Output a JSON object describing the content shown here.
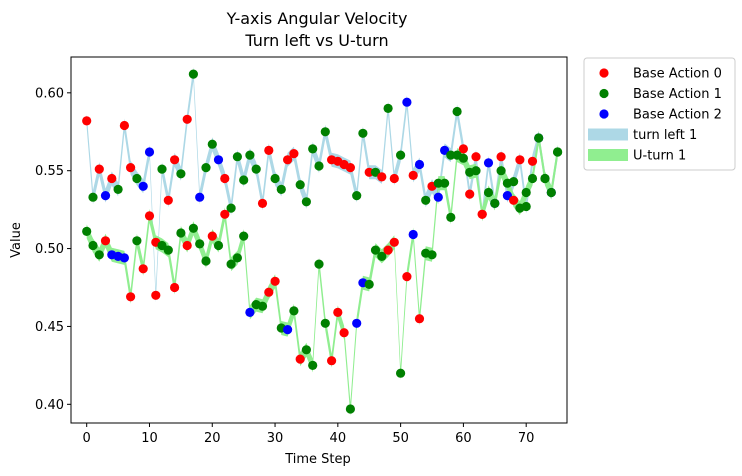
{
  "chart_data": {
    "type": "scatter",
    "title": "Y-axis Angular Velocity",
    "subtitle": "Turn left vs U-turn",
    "xlabel": "Time Step",
    "ylabel": "Value",
    "xlim": [
      -2.5,
      76.5
    ],
    "ylim": [
      0.388,
      0.623
    ],
    "xticks": [
      0,
      10,
      20,
      30,
      40,
      50,
      60,
      70
    ],
    "yticks": [
      0.4,
      0.45,
      0.5,
      0.55,
      0.6
    ],
    "xtick_labels": [
      "0",
      "10",
      "20",
      "30",
      "40",
      "50",
      "60",
      "70"
    ],
    "ytick_labels": [
      "0.40",
      "0.45",
      "0.50",
      "0.55",
      "0.60"
    ],
    "grid": false,
    "legend_position": "outside-right",
    "legend": [
      {
        "label": "Base Action 0",
        "kind": "marker",
        "color": "#ff0000"
      },
      {
        "label": "Base Action 1",
        "kind": "marker",
        "color": "#008000"
      },
      {
        "label": "Base Action 2",
        "kind": "marker",
        "color": "#0000ff"
      },
      {
        "label": "turn left 1",
        "kind": "band",
        "color": "#add8e6"
      },
      {
        "label": "U-turn 1",
        "kind": "band",
        "color": "#90ee90"
      }
    ],
    "series": [
      {
        "name": "turn left 1",
        "color": "#add8e6",
        "values": [
          0.582,
          0.533,
          0.551,
          0.534,
          0.545,
          0.538,
          0.579,
          0.552,
          0.545,
          0.54,
          0.562,
          0.47,
          0.551,
          0.531,
          0.557,
          0.548,
          0.583,
          0.612,
          0.533,
          0.552,
          0.567,
          0.557,
          0.545,
          0.526,
          0.559,
          0.544,
          0.56,
          0.551,
          0.529,
          0.563,
          0.545,
          0.538,
          0.557,
          0.561,
          0.541,
          0.53,
          0.564,
          0.553,
          0.575,
          0.557,
          0.556,
          0.554,
          0.552,
          0.534,
          0.574,
          0.549,
          0.549,
          0.546,
          0.59,
          0.545,
          0.56,
          0.594,
          0.547,
          0.554,
          0.531,
          0.54,
          0.533,
          0.563,
          0.56,
          0.588,
          0.564,
          0.535,
          0.559,
          0.522,
          0.555,
          0.529,
          0.559,
          0.534,
          0.543,
          0.557,
          0.527,
          0.556,
          0.571,
          0.545,
          0.536,
          0.562
        ],
        "action": [
          0,
          1,
          0,
          2,
          0,
          1,
          0,
          0,
          1,
          2,
          2,
          0,
          1,
          0,
          0,
          1,
          0,
          1,
          2,
          1,
          1,
          2,
          0,
          1,
          1,
          1,
          1,
          1,
          0,
          0,
          1,
          1,
          0,
          0,
          1,
          1,
          1,
          1,
          1,
          0,
          0,
          0,
          0,
          1,
          1,
          0,
          1,
          0,
          1,
          0,
          1,
          2,
          0,
          2,
          1,
          0,
          2,
          2,
          1,
          1,
          0,
          0,
          0,
          0,
          2,
          2,
          0,
          2,
          1,
          0,
          1,
          0,
          2,
          1,
          2,
          1
        ]
      },
      {
        "name": "U-turn 1",
        "color": "#90ee90",
        "values": [
          0.511,
          0.502,
          0.496,
          0.505,
          0.496,
          0.495,
          0.494,
          0.469,
          0.505,
          0.487,
          0.521,
          0.504,
          0.502,
          0.499,
          0.475,
          0.51,
          0.502,
          0.513,
          0.503,
          0.492,
          0.508,
          0.502,
          0.522,
          0.49,
          0.494,
          0.508,
          0.459,
          0.464,
          0.463,
          0.472,
          0.479,
          0.449,
          0.448,
          0.46,
          0.429,
          0.435,
          0.425,
          0.49,
          0.452,
          0.428,
          0.459,
          0.446,
          0.397,
          0.452,
          0.478,
          0.477,
          0.499,
          0.495,
          0.499,
          0.504,
          0.42,
          0.482,
          0.509,
          0.455,
          0.497,
          0.496,
          0.542,
          0.542,
          0.52,
          0.56,
          0.558,
          0.549,
          0.55,
          0.522,
          0.536,
          0.529,
          0.55,
          0.542,
          0.531,
          0.526,
          0.536,
          0.545,
          0.571,
          0.545,
          0.536,
          0.562
        ],
        "action": [
          1,
          1,
          1,
          0,
          2,
          2,
          2,
          0,
          1,
          0,
          0,
          0,
          1,
          1,
          0,
          1,
          0,
          1,
          1,
          1,
          0,
          1,
          0,
          1,
          1,
          1,
          2,
          1,
          1,
          0,
          0,
          1,
          2,
          1,
          0,
          1,
          1,
          1,
          1,
          0,
          0,
          0,
          1,
          2,
          2,
          1,
          1,
          1,
          0,
          0,
          1,
          0,
          2,
          0,
          1,
          1,
          1,
          1,
          1,
          1,
          1,
          1,
          1,
          0,
          1,
          1,
          1,
          1,
          0,
          1,
          1,
          1,
          1,
          1,
          1,
          1
        ]
      }
    ],
    "action_colors": [
      "#ff0000",
      "#008000",
      "#0000ff"
    ]
  }
}
